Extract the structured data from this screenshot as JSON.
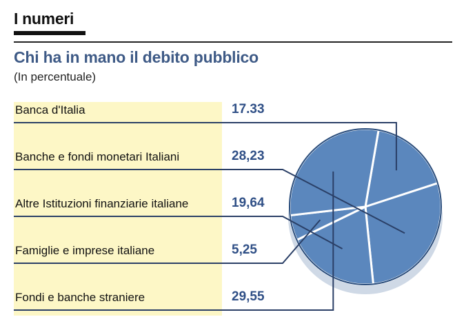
{
  "header": {
    "section_title": "I numeri"
  },
  "colors": {
    "title": "#3e5a86",
    "value": "#2f4f86",
    "pie_fill": "#5b87bd",
    "pie_edge": "#2a4d7c",
    "pie_rim": "#cfd9e6",
    "leader": "#2a3f66",
    "label_band": "#fdf7c6"
  },
  "chart_data": {
    "type": "pie",
    "title": "Chi ha in mano il debito pubblico",
    "subtitle": "(In percentuale)",
    "categories": [
      "Banca d'Italia",
      "Banche e fondi monetari Italiani",
      "Altre Istituzioni finanziarie italiane",
      "Famiglie e imprese italiane",
      "Fondi e banche straniere"
    ],
    "values": [
      17.33,
      28.23,
      19.64,
      5.25,
      29.55
    ],
    "value_labels": [
      "17.33",
      "28,23",
      "19,64",
      "5,25",
      "29,55"
    ]
  }
}
